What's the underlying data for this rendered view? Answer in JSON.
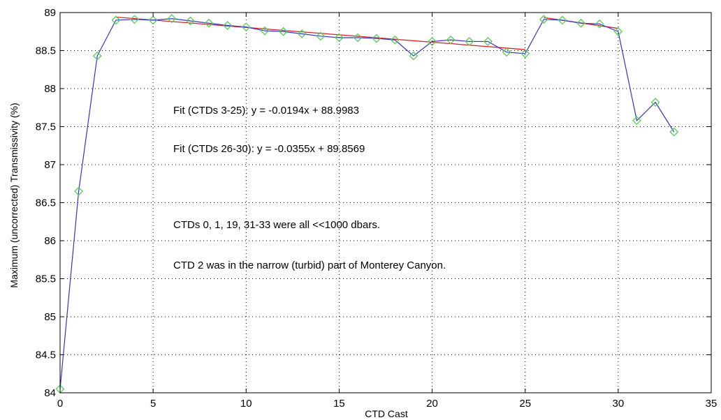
{
  "chart_data": {
    "type": "line",
    "title": "",
    "xlabel": "CTD Cast",
    "ylabel": "Maximum (uncorrected) Transmissivity (%)",
    "xlim": [
      0,
      35
    ],
    "ylim": [
      84,
      89
    ],
    "xticks": [
      0,
      5,
      10,
      15,
      20,
      25,
      30,
      35
    ],
    "yticks": [
      84,
      84.5,
      85,
      85.5,
      86,
      86.5,
      87,
      87.5,
      88,
      88.5,
      89
    ],
    "grid": true,
    "series": [
      {
        "name": "",
        "color": "#3333cc",
        "marker": "diamond",
        "marker_color": "#55cc55",
        "x": [
          0,
          1,
          2,
          3,
          4,
          5,
          6,
          7,
          8,
          9,
          10,
          11,
          12,
          13,
          14,
          15,
          16,
          17,
          18,
          19,
          20,
          21,
          22,
          23,
          24,
          25,
          26,
          27,
          28,
          29,
          30,
          31,
          32,
          33
        ],
        "y": [
          84.05,
          86.65,
          88.43,
          88.9,
          88.91,
          88.9,
          88.92,
          88.89,
          88.86,
          88.83,
          88.81,
          88.76,
          88.75,
          88.72,
          88.69,
          88.67,
          88.67,
          88.66,
          88.64,
          88.43,
          88.62,
          88.64,
          88.62,
          88.62,
          88.48,
          88.46,
          88.91,
          88.9,
          88.86,
          88.85,
          88.75,
          87.58,
          87.82,
          87.43
        ]
      }
    ],
    "fits": [
      {
        "label": "Fit (CTDs 3-25)",
        "equation": "y = -0.0194x + 88.9983",
        "slope": -0.0194,
        "intercept": 88.9983,
        "x_range": [
          3,
          25
        ],
        "color": "#dd2222"
      },
      {
        "label": "Fit (CTDs 26-30)",
        "equation": "y = -0.0355x + 89.8569",
        "slope": -0.0355,
        "intercept": 89.8569,
        "x_range": [
          26,
          30
        ],
        "color": "#dd2222"
      }
    ],
    "annotations": [
      "CTDs 0, 1, 19, 31-33 were all <<1000 dbars.",
      "CTD 2 was in the narrow (turbid) part of Monterey Canyon."
    ]
  }
}
